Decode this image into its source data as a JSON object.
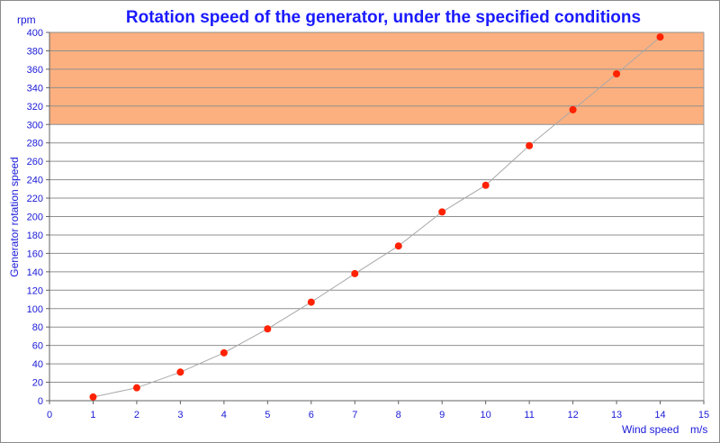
{
  "chart_data": {
    "type": "scatter",
    "title": "Rotation speed of the generator, under the specified conditions",
    "ylabel": "Generator rotation speed",
    "yunit": "rpm",
    "xlabel": "Wind speed",
    "xunit": "m/s",
    "xlim": [
      0,
      15
    ],
    "ylim": [
      0,
      400
    ],
    "xticks": [
      0,
      1,
      2,
      3,
      4,
      5,
      6,
      7,
      8,
      9,
      10,
      11,
      12,
      13,
      14,
      15
    ],
    "yticks": [
      0,
      20,
      40,
      60,
      80,
      100,
      120,
      140,
      160,
      180,
      200,
      220,
      240,
      260,
      280,
      300,
      320,
      340,
      360,
      380,
      400
    ],
    "grid": true,
    "shaded_band": {
      "y_from": 300,
      "y_to": 400,
      "color": "#fdb07f"
    },
    "series": [
      {
        "x": [
          1,
          2,
          3,
          4,
          5,
          6,
          7,
          8,
          9,
          10,
          11,
          12,
          13,
          14
        ],
        "values": [
          4,
          14,
          31,
          52,
          78,
          107,
          138,
          168,
          205,
          234,
          277,
          316,
          355,
          395
        ],
        "marker_color": "#ff2200",
        "line_color": "#a8a8a8"
      }
    ]
  }
}
